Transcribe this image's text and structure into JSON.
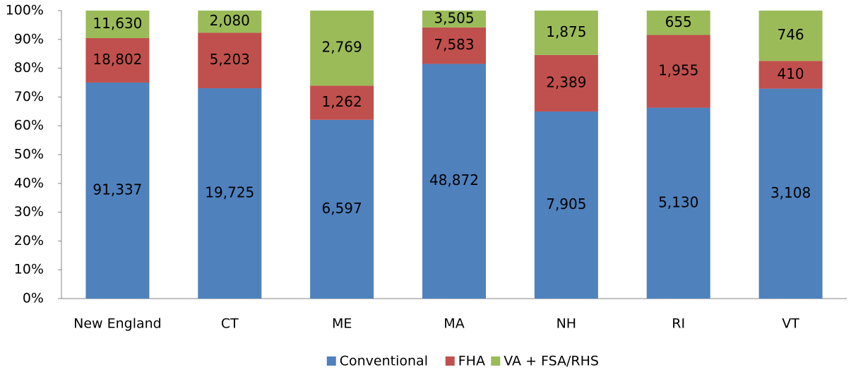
{
  "chart_data": {
    "type": "bar",
    "stacking": "percent",
    "categories": [
      "New England",
      "CT",
      "ME",
      "MA",
      "NH",
      "RI",
      "VT"
    ],
    "series": [
      {
        "name": "Conventional",
        "color": "#4f81bd",
        "values": [
          91337,
          19725,
          6597,
          48872,
          7905,
          5130,
          3108
        ],
        "value_labels": [
          "91,337",
          "19,725",
          "6,597",
          "48,872",
          "7,905",
          "5,130",
          "3,108"
        ]
      },
      {
        "name": "FHA",
        "color": "#c0504d",
        "values": [
          18802,
          5203,
          1262,
          7583,
          2389,
          1955,
          410
        ],
        "value_labels": [
          "18,802",
          "5,203",
          "1,262",
          "7,583",
          "2,389",
          "1,955",
          "410"
        ]
      },
      {
        "name": "VA + FSA/RHS",
        "color": "#9bbb59",
        "values": [
          11630,
          2080,
          2769,
          3505,
          1875,
          655,
          746
        ],
        "value_labels": [
          "11,630",
          "2,080",
          "2,769",
          "3,505",
          "1,875",
          "655",
          "746"
        ]
      }
    ],
    "ylim": [
      0,
      100
    ],
    "yticks": [
      {
        "value": 0,
        "label": "0%"
      },
      {
        "value": 10,
        "label": "10%"
      },
      {
        "value": 20,
        "label": "20%"
      },
      {
        "value": 30,
        "label": "30%"
      },
      {
        "value": 40,
        "label": "40%"
      },
      {
        "value": 50,
        "label": "50%"
      },
      {
        "value": 60,
        "label": "60%"
      },
      {
        "value": 70,
        "label": "70%"
      },
      {
        "value": 80,
        "label": "80%"
      },
      {
        "value": 90,
        "label": "90%"
      },
      {
        "value": 100,
        "label": "100%"
      }
    ],
    "grid": false,
    "legend": "bottom"
  }
}
